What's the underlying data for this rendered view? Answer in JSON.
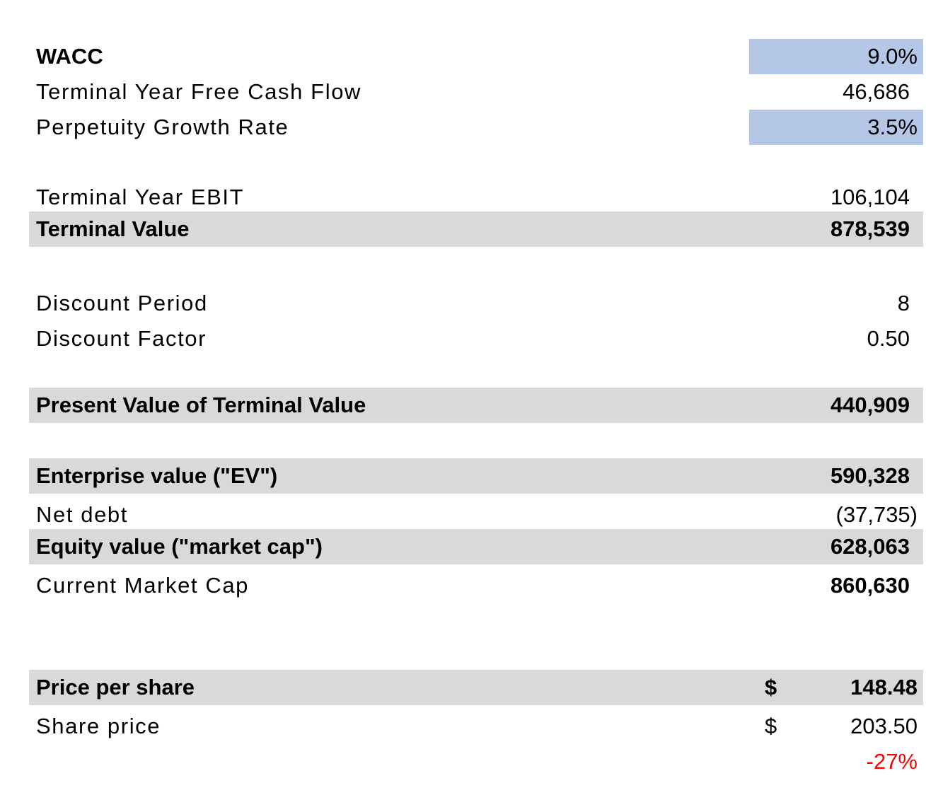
{
  "rows": {
    "wacc": {
      "label": "WACC",
      "value": "9.0%"
    },
    "terminal_fcf": {
      "label": "Terminal Year Free Cash Flow",
      "value": "46,686"
    },
    "growth_rate": {
      "label": "Perpetuity Growth Rate",
      "value": "3.5%"
    },
    "terminal_ebit": {
      "label": "Terminal Year EBIT",
      "value": "106,104"
    },
    "terminal_value": {
      "label": "Terminal Value",
      "value": "878,539"
    },
    "discount_period": {
      "label": "Discount Period",
      "value": "8"
    },
    "discount_factor": {
      "label": "Discount Factor",
      "value": "0.50"
    },
    "pv_terminal_value": {
      "label": "Present Value of Terminal Value",
      "value": "440,909"
    },
    "enterprise_value": {
      "label": "Enterprise value (\"EV\")",
      "value": "590,328"
    },
    "net_debt": {
      "label": "Net debt",
      "value": "(37,735)"
    },
    "equity_value": {
      "label": "Equity value (\"market cap\")",
      "value": "628,063"
    },
    "current_market_cap": {
      "label": "Current Market Cap",
      "value": "860,630"
    },
    "price_per_share": {
      "label": "Price per share",
      "currency": "$",
      "value": "148.48"
    },
    "share_price": {
      "label": "Share price",
      "currency": "$",
      "value": "203.50"
    },
    "upside": {
      "value": "-27%"
    }
  },
  "colors": {
    "input_fill": "#b4c7e7",
    "total_fill": "#d9d9d9",
    "negative_text": "#ff0000"
  }
}
